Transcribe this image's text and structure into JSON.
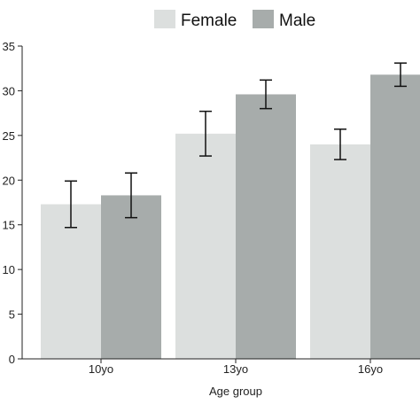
{
  "chart_data": {
    "type": "bar",
    "title": "",
    "xlabel": "Age group",
    "ylabel": "",
    "categories": [
      "10yo",
      "13yo",
      "16yo"
    ],
    "series": [
      {
        "name": "Female",
        "color": "#dcdfde",
        "values": [
          17.3,
          25.2,
          24.0
        ],
        "error": [
          2.6,
          2.5,
          1.7
        ]
      },
      {
        "name": "Male",
        "color": "#a7acab",
        "values": [
          18.3,
          29.6,
          31.8
        ],
        "error": [
          2.5,
          1.6,
          1.3
        ]
      }
    ],
    "ylim": [
      0,
      35
    ],
    "yticks": [
      0,
      5,
      10,
      15,
      20,
      25,
      30,
      35
    ],
    "ytick_labels": [
      "0",
      "5",
      "10",
      "15",
      "20",
      "25",
      "30",
      "35"
    ],
    "grid": false,
    "legend_position": "top"
  }
}
